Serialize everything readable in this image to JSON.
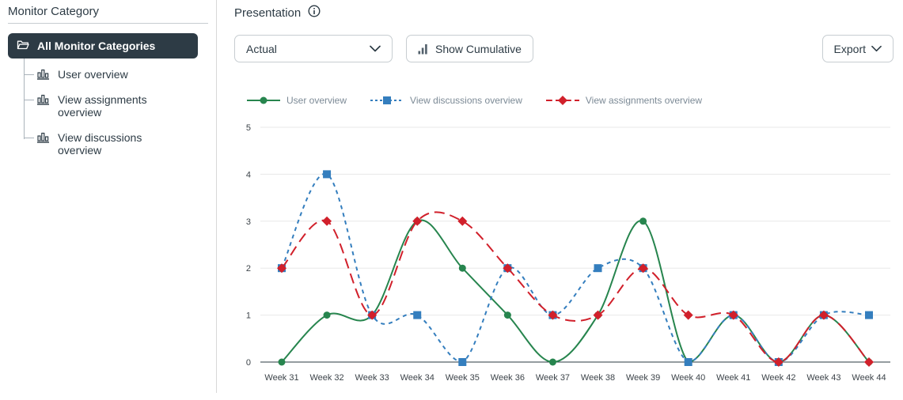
{
  "sidebar": {
    "title": "Monitor Category",
    "root_label": "All Monitor Categories",
    "items": [
      {
        "label": "User overview"
      },
      {
        "label": "View assignments overview"
      },
      {
        "label": "View discussions overview"
      }
    ]
  },
  "main": {
    "title": "Presentation",
    "toolbar": {
      "select_value": "Actual",
      "show_cumulative_label": "Show Cumulative",
      "export_label": "Export"
    }
  },
  "theme": {
    "text": "#2d3b45",
    "border": "#c7cdd1",
    "selected_bg": "#2d3b45",
    "grid": "#e8e8e8",
    "axis": "#2b3942"
  },
  "chart_data": {
    "type": "line",
    "x": [
      "Week 31",
      "Week 32",
      "Week 33",
      "Week 34",
      "Week 35",
      "Week 36",
      "Week 37",
      "Week 38",
      "Week 39",
      "Week 40",
      "Week 41",
      "Week 42",
      "Week 43",
      "Week 44"
    ],
    "series": [
      {
        "name": "User overview",
        "color": "#27854e",
        "marker": "circle",
        "dash": null,
        "values": [
          0,
          1,
          1,
          3,
          2,
          1,
          0,
          1,
          3,
          0,
          1,
          0,
          1,
          0
        ]
      },
      {
        "name": "View discussions overview",
        "color": "#347ebe",
        "marker": "square",
        "dash": [
          5,
          5
        ],
        "values": [
          2,
          4,
          1,
          1,
          0,
          2,
          1,
          2,
          2,
          0,
          1,
          0,
          1,
          1
        ]
      },
      {
        "name": "View assignments overview",
        "color": "#d1202b",
        "marker": "diamond",
        "dash": [
          13,
          7
        ],
        "values": [
          2,
          3,
          1,
          3,
          3,
          2,
          1,
          1,
          2,
          1,
          1,
          0,
          1,
          0
        ]
      }
    ],
    "ylim": [
      0,
      5
    ],
    "yticks": [
      0,
      1,
      2,
      3,
      4,
      5
    ],
    "legend_position": "top",
    "grid": true
  }
}
